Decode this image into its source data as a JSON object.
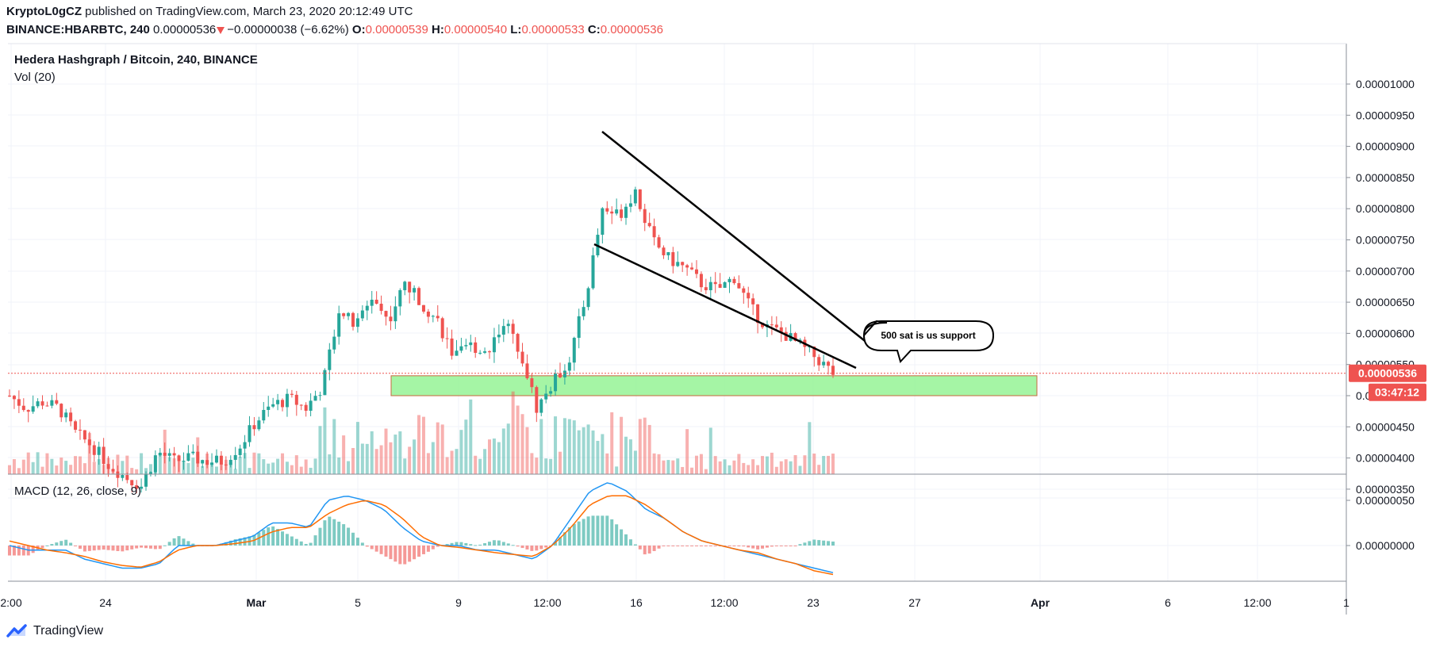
{
  "header": {
    "author": "KryptoL0gCZ",
    "published": "published on TradingView.com, March 23, 2020 20:12:49 UTC",
    "symbol": "BINANCE:HBARBTC, 240",
    "last": "0.00000536",
    "change": "−0.00000038 (−6.62%)",
    "o_label": "O:",
    "o": "0.00000539",
    "h_label": "H:",
    "h": "0.00000540",
    "l_label": "L:",
    "l": "0.00000533",
    "c_label": "C:",
    "c": "0.00000536"
  },
  "chart_data": {
    "type": "candlestick",
    "title": "Hedera Hashgraph / Bitcoin, 240, BINANCE",
    "volume_label": "Vol (20)",
    "price_axis": [
      "0.00001000",
      "0.00000950",
      "0.00000900",
      "0.00000850",
      "0.00000800",
      "0.00000750",
      "0.00000700",
      "0.00000650",
      "0.00000600",
      "0.00000550",
      "0.00000500",
      "0.00000450",
      "0.00000400",
      "0.00000350"
    ],
    "ylim": [
      3.3e-06,
      1.01e-05
    ],
    "time_axis": [
      "2:00",
      "24",
      "Mar",
      "5",
      "9",
      "12:00",
      "16",
      "12:00",
      "23",
      "27",
      "Apr",
      "6",
      "12:00",
      "1"
    ],
    "last_price_label": "0.00000536",
    "countdown_label": "03:47:12",
    "annotation": "500 sat is us support",
    "support_zone": [
      5e-06,
      5.32e-06
    ],
    "price_waypoints": [
      5.0,
      4.8,
      4.9,
      4.8,
      4.4,
      4.2,
      3.9,
      3.7,
      3.55,
      4.1,
      3.95,
      4.0,
      3.95,
      3.95,
      4.2,
      4.6,
      4.85,
      4.95,
      4.8,
      5.15,
      6.4,
      6.1,
      6.6,
      6.2,
      6.8,
      6.5,
      6.2,
      5.6,
      5.8,
      5.7,
      6.2,
      5.75,
      4.8,
      5.2,
      5.6,
      6.6,
      8.0,
      7.9,
      8.3,
      7.5,
      7.2,
      7.05,
      6.8,
      6.7,
      6.9,
      6.4,
      6.1,
      6.0,
      5.8,
      5.6,
      5.36
    ],
    "macd": {
      "label": "MACD (12, 26, close, 9)",
      "axis": [
        "0.00000050",
        "0.00000000"
      ],
      "ylim": [
        -5e-07,
        8e-07
      ],
      "macd_waypoints": [
        0.0,
        -0.05,
        -0.05,
        -0.05,
        -0.15,
        -0.2,
        -0.25,
        -0.25,
        -0.2,
        0.0,
        0.0,
        0.0,
        0.05,
        0.1,
        0.25,
        0.25,
        0.2,
        0.5,
        0.55,
        0.5,
        0.4,
        0.2,
        0.05,
        0.0,
        0.0,
        -0.05,
        -0.05,
        -0.1,
        -0.15,
        0.0,
        0.3,
        0.6,
        0.7,
        0.6,
        0.4,
        0.3,
        0.15,
        0.05,
        0.0,
        -0.05,
        -0.1,
        -0.15,
        -0.2,
        -0.25,
        -0.3
      ],
      "signal_waypoints": [
        0.05,
        0.0,
        -0.05,
        -0.08,
        -0.12,
        -0.18,
        -0.22,
        -0.24,
        -0.18,
        -0.05,
        0.0,
        0.0,
        0.02,
        0.05,
        0.15,
        0.2,
        0.2,
        0.35,
        0.45,
        0.5,
        0.45,
        0.3,
        0.1,
        0.0,
        -0.02,
        -0.05,
        -0.08,
        -0.1,
        -0.12,
        0.0,
        0.2,
        0.45,
        0.55,
        0.55,
        0.45,
        0.3,
        0.15,
        0.05,
        0.0,
        -0.05,
        -0.08,
        -0.15,
        -0.2,
        -0.28,
        -0.32
      ]
    },
    "colors": {
      "up": "#26a69a",
      "down": "#ef5350",
      "macd": "#2196f3",
      "signal": "#ff6d00",
      "zone": "#9cf59c",
      "zone_border": "#c25a2a"
    }
  },
  "footer": {
    "brand": "TradingView"
  }
}
